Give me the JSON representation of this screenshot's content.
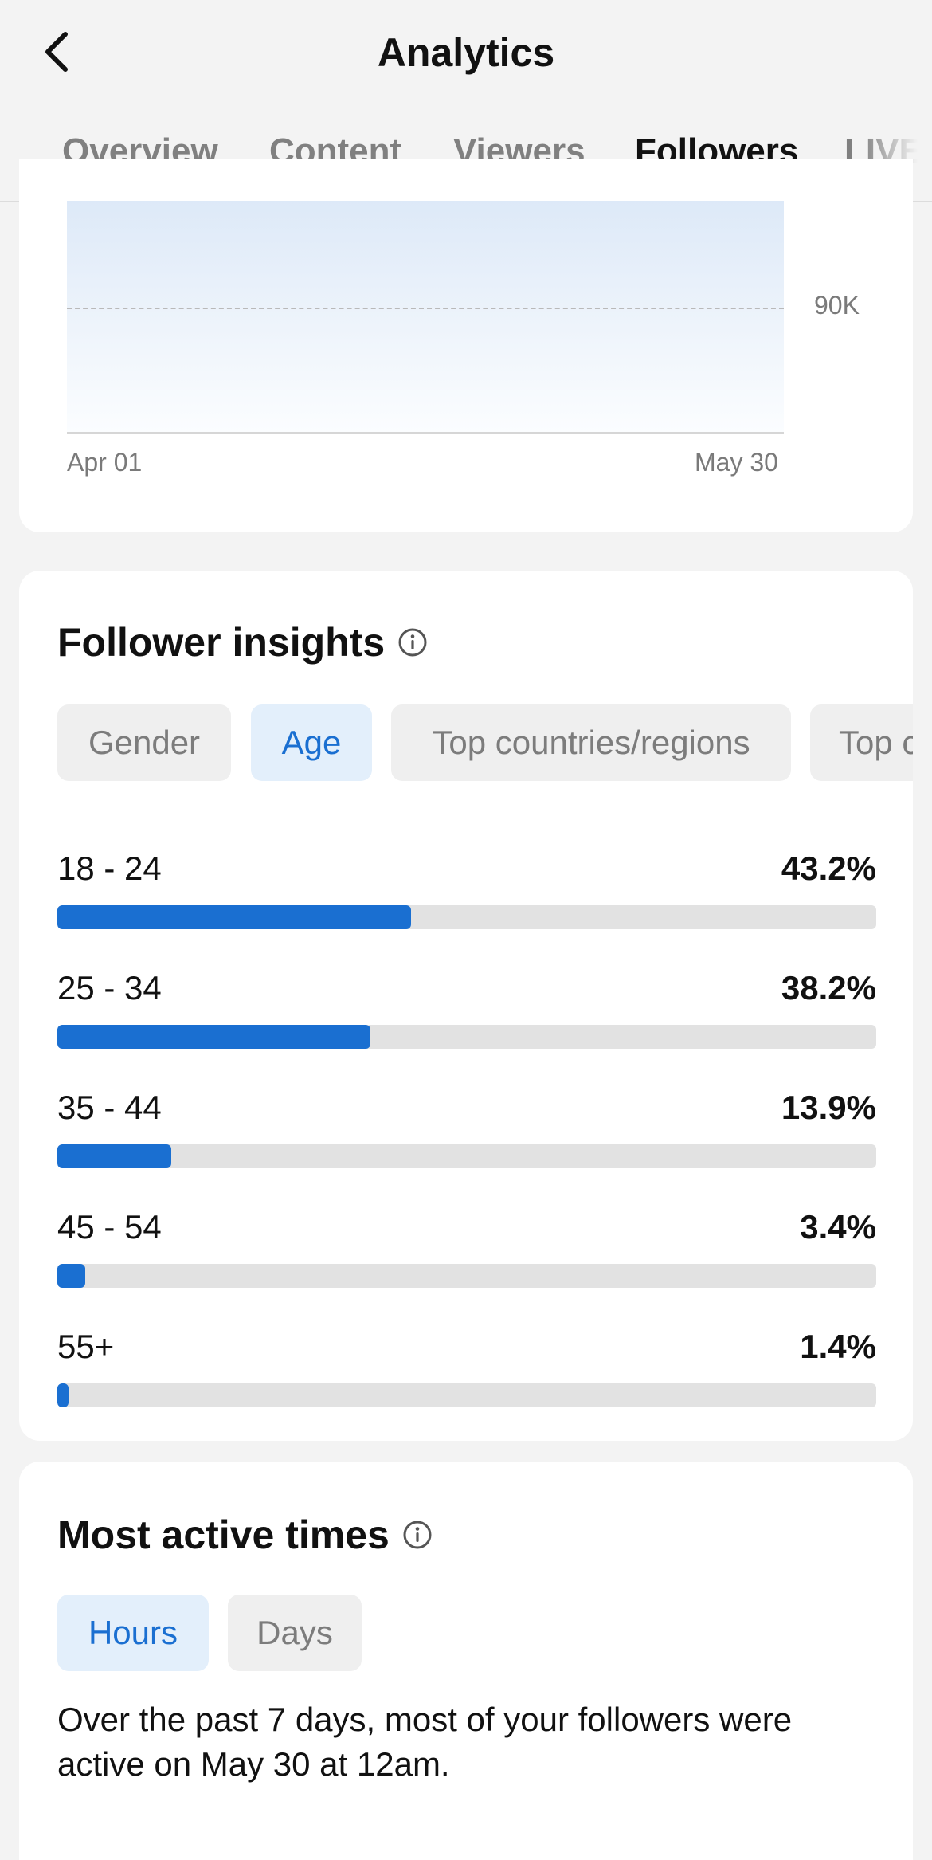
{
  "header": {
    "title": "Analytics"
  },
  "tabs": [
    {
      "label": "Overview",
      "active": false
    },
    {
      "label": "Content",
      "active": false
    },
    {
      "label": "Viewers",
      "active": false
    },
    {
      "label": "Followers",
      "active": true
    },
    {
      "label": "LIVE",
      "active": false
    }
  ],
  "chart_data": {
    "type": "area",
    "x_tick_labels": [
      "Apr 01",
      "May 30"
    ],
    "y_tick_labels": [
      "90K"
    ],
    "grid": true
  },
  "follower_insights": {
    "title": "Follower insights",
    "chips": [
      {
        "label": "Gender",
        "active": false
      },
      {
        "label": "Age",
        "active": true
      },
      {
        "label": "Top countries/regions",
        "active": false
      },
      {
        "label": "Top c",
        "active": false
      }
    ],
    "age_breakdown": [
      {
        "label": "18 - 24",
        "percent_text": "43.2%",
        "value": 43.2
      },
      {
        "label": "25 - 34",
        "percent_text": "38.2%",
        "value": 38.2
      },
      {
        "label": "35 - 44",
        "percent_text": "13.9%",
        "value": 13.9
      },
      {
        "label": "45 - 54",
        "percent_text": "3.4%",
        "value": 3.4
      },
      {
        "label": "55+",
        "percent_text": "1.4%",
        "value": 1.4
      }
    ]
  },
  "most_active": {
    "title": "Most active times",
    "chips": [
      {
        "label": "Hours",
        "active": true
      },
      {
        "label": "Days",
        "active": false
      }
    ],
    "summary": "Over the past 7 days, most of your followers were active on May 30 at 12am."
  },
  "colors": {
    "accent": "#1a6fd1",
    "track": "#e2e2e2",
    "active_chip_bg": "#e3effb"
  }
}
